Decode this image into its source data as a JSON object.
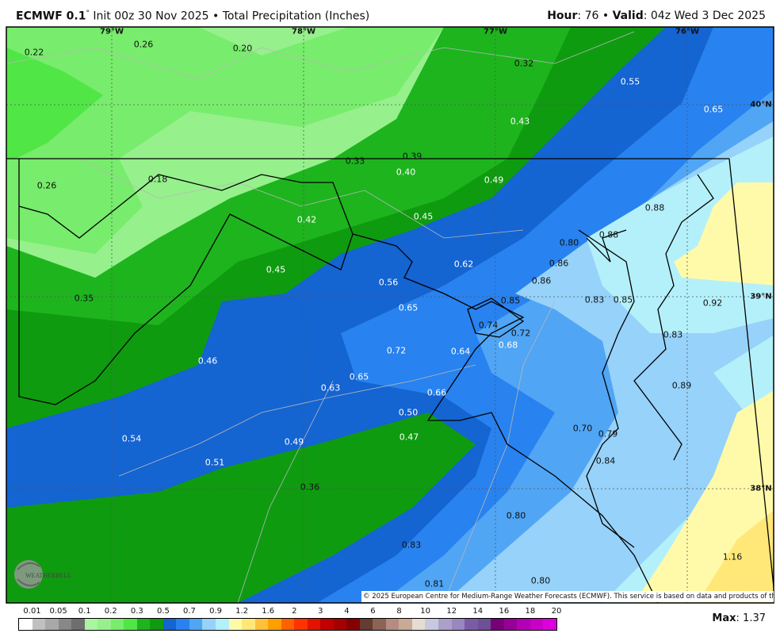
{
  "header": {
    "model": "ECMWF 0.1",
    "degree": "°",
    "init": "Init 00z 30 Nov 2025",
    "separator": "•",
    "product": "Total Precipitation (Inches)",
    "hour_label": "Hour",
    "hour": ": 76",
    "valid_label": "Valid",
    "valid": ": 04z Wed 3 Dec 2025"
  },
  "graticule": {
    "lon": [
      "79°W",
      "78°W",
      "77°W",
      "76°W"
    ],
    "lat": [
      "40°N",
      "39°N",
      "38°N"
    ]
  },
  "map": {
    "labels": [
      "0.22",
      "0.26",
      "0.20",
      "0.32",
      "0.55",
      "0.65",
      "0.43",
      "0.39",
      "0.33",
      "0.40",
      "0.49",
      "0.26",
      "0.18",
      "0.42",
      "0.45",
      "0.88",
      "0.88",
      "0.80",
      "0.86",
      "0.62",
      "0.45",
      "0.56",
      "0.86",
      "0.35",
      "0.85",
      "0.83",
      "0.85",
      "0.92",
      "0.65",
      "0.74",
      "0.72",
      "0.83",
      "0.68",
      "0.72",
      "0.64",
      "0.46",
      "0.65",
      "0.89",
      "0.63",
      "0.66",
      "0.50",
      "0.70",
      "0.79",
      "0.54",
      "0.47",
      "0.49",
      "0.84",
      "0.51",
      "0.36",
      "0.80",
      "0.83",
      "1.16",
      "0.81",
      "0.80"
    ],
    "logo_text": "WeatherBELL",
    "copyright": "© 2025 European Centre for Medium-Range Weather Forecasts (ECMWF). This service is based on data and products of the ECMWF."
  },
  "colorbar": {
    "ticks": [
      "0.01",
      "0.05",
      "0.1",
      "0.2",
      "0.3",
      "0.5",
      "0.7",
      "0.9",
      "1.2",
      "1.6",
      "2",
      "3",
      "4",
      "6",
      "8",
      "10",
      "12",
      "14",
      "16",
      "18",
      "20"
    ],
    "colors": [
      "#ffffff",
      "#c0c0c0",
      "#a8a8a8",
      "#888888",
      "#6e6e6e",
      "#aaf5a0",
      "#96f08c",
      "#78ec6c",
      "#50e646",
      "#1eb41e",
      "#0f9b0f",
      "#1464d2",
      "#2882f0",
      "#50a5f5",
      "#96d2fa",
      "#b4f0fa",
      "#fffaaa",
      "#ffe878",
      "#ffc03c",
      "#ffa000",
      "#ff6000",
      "#ff3200",
      "#e11400",
      "#c00000",
      "#a50000",
      "#870000",
      "#643c32",
      "#8c6454",
      "#b48c82",
      "#c8aa96",
      "#e6dcd2",
      "#c8c8e1",
      "#aaa0c8",
      "#9a87be",
      "#7a5ca5",
      "#6e5096",
      "#780078",
      "#960096",
      "#b400b4",
      "#c800c8",
      "#dc00dc"
    ]
  },
  "max": {
    "label": "Max",
    "value": ": 1.37"
  }
}
